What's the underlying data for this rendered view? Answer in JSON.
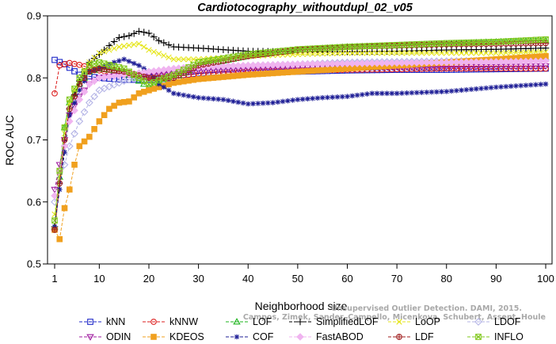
{
  "chart_data": {
    "type": "line",
    "title": "Cardiotocography_withoutdupl_02_v05",
    "xlabel": "Neighborhood size",
    "ylabel": "ROC AUC",
    "xlim": [
      1,
      100
    ],
    "ylim": [
      0.5,
      0.9
    ],
    "x_ticks": [
      1,
      10,
      20,
      30,
      40,
      50,
      60,
      70,
      80,
      90,
      100
    ],
    "y_ticks": [
      0.5,
      0.6,
      0.7,
      0.8,
      0.9
    ],
    "grid": false,
    "legend_position": "bottom",
    "series": [
      {
        "name": "kNN",
        "color": "#1f28c8",
        "marker": "square",
        "points": [
          [
            1,
            0.829
          ],
          [
            3,
            0.822
          ],
          [
            6,
            0.805
          ],
          [
            10,
            0.8
          ],
          [
            15,
            0.797
          ],
          [
            20,
            0.797
          ],
          [
            25,
            0.799
          ],
          [
            30,
            0.803
          ],
          [
            40,
            0.808
          ],
          [
            50,
            0.81
          ],
          [
            60,
            0.812
          ],
          [
            70,
            0.813
          ],
          [
            80,
            0.813
          ],
          [
            90,
            0.814
          ],
          [
            100,
            0.815
          ]
        ]
      },
      {
        "name": "kNNW",
        "color": "#dc1e1e",
        "marker": "circle",
        "points": [
          [
            1,
            0.775
          ],
          [
            2,
            0.82
          ],
          [
            4,
            0.824
          ],
          [
            6,
            0.821
          ],
          [
            10,
            0.812
          ],
          [
            15,
            0.806
          ],
          [
            20,
            0.802
          ],
          [
            25,
            0.803
          ],
          [
            30,
            0.806
          ],
          [
            40,
            0.81
          ],
          [
            50,
            0.812
          ],
          [
            60,
            0.813
          ],
          [
            70,
            0.814
          ],
          [
            80,
            0.815
          ],
          [
            90,
            0.815
          ],
          [
            100,
            0.815
          ]
        ]
      },
      {
        "name": "LOF",
        "color": "#1eb41e",
        "marker": "triangle-up",
        "points": [
          [
            1,
            0.56
          ],
          [
            2,
            0.64
          ],
          [
            3,
            0.72
          ],
          [
            4,
            0.76
          ],
          [
            6,
            0.79
          ],
          [
            8,
            0.81
          ],
          [
            10,
            0.815
          ],
          [
            15,
            0.81
          ],
          [
            20,
            0.785
          ],
          [
            25,
            0.8
          ],
          [
            30,
            0.82
          ],
          [
            40,
            0.835
          ],
          [
            50,
            0.845
          ],
          [
            60,
            0.85
          ],
          [
            70,
            0.852
          ],
          [
            80,
            0.855
          ],
          [
            90,
            0.858
          ],
          [
            100,
            0.86
          ]
        ]
      },
      {
        "name": "SimplifiedLOF",
        "color": "#000000",
        "marker": "plus",
        "points": [
          [
            1,
            0.56
          ],
          [
            2,
            0.63
          ],
          [
            3,
            0.69
          ],
          [
            4,
            0.75
          ],
          [
            6,
            0.795
          ],
          [
            8,
            0.825
          ],
          [
            10,
            0.838
          ],
          [
            12,
            0.852
          ],
          [
            14,
            0.865
          ],
          [
            16,
            0.868
          ],
          [
            18,
            0.875
          ],
          [
            20,
            0.872
          ],
          [
            22,
            0.86
          ],
          [
            25,
            0.85
          ],
          [
            30,
            0.848
          ],
          [
            40,
            0.843
          ],
          [
            50,
            0.842
          ],
          [
            60,
            0.842
          ],
          [
            70,
            0.843
          ],
          [
            80,
            0.845
          ],
          [
            90,
            0.846
          ],
          [
            100,
            0.848
          ]
        ]
      },
      {
        "name": "LoOP",
        "color": "#e6e61e",
        "marker": "x",
        "points": [
          [
            1,
            0.58
          ],
          [
            2,
            0.64
          ],
          [
            3,
            0.71
          ],
          [
            4,
            0.76
          ],
          [
            6,
            0.8
          ],
          [
            8,
            0.825
          ],
          [
            10,
            0.84
          ],
          [
            14,
            0.85
          ],
          [
            18,
            0.855
          ],
          [
            20,
            0.845
          ],
          [
            25,
            0.83
          ],
          [
            30,
            0.83
          ],
          [
            40,
            0.835
          ],
          [
            50,
            0.838
          ],
          [
            60,
            0.84
          ],
          [
            70,
            0.84
          ],
          [
            80,
            0.84
          ],
          [
            90,
            0.84
          ],
          [
            100,
            0.842
          ]
        ]
      },
      {
        "name": "LDOF",
        "color": "#b4b4e6",
        "marker": "diamond",
        "points": [
          [
            1,
            0.6
          ],
          [
            2,
            0.63
          ],
          [
            3,
            0.66
          ],
          [
            4,
            0.69
          ],
          [
            6,
            0.73
          ],
          [
            8,
            0.76
          ],
          [
            10,
            0.78
          ],
          [
            15,
            0.795
          ],
          [
            20,
            0.805
          ],
          [
            25,
            0.81
          ],
          [
            30,
            0.815
          ],
          [
            40,
            0.82
          ],
          [
            50,
            0.822
          ],
          [
            60,
            0.825
          ],
          [
            70,
            0.826
          ],
          [
            80,
            0.827
          ],
          [
            90,
            0.828
          ],
          [
            100,
            0.829
          ]
        ]
      },
      {
        "name": "ODIN",
        "color": "#a01ea0",
        "marker": "triangle-down",
        "points": [
          [
            1,
            0.62
          ],
          [
            2,
            0.66
          ],
          [
            3,
            0.7
          ],
          [
            4,
            0.74
          ],
          [
            6,
            0.77
          ],
          [
            8,
            0.79
          ],
          [
            10,
            0.8
          ],
          [
            15,
            0.805
          ],
          [
            20,
            0.805
          ],
          [
            25,
            0.81
          ],
          [
            30,
            0.812
          ],
          [
            40,
            0.815
          ],
          [
            50,
            0.816
          ],
          [
            60,
            0.817
          ],
          [
            70,
            0.818
          ],
          [
            80,
            0.818
          ],
          [
            90,
            0.818
          ],
          [
            100,
            0.819
          ]
        ]
      },
      {
        "name": "KDEOS",
        "color": "#f0a01e",
        "marker": "filled-square",
        "points": [
          [
            1,
            0.555
          ],
          [
            2,
            0.54
          ],
          [
            3,
            0.59
          ],
          [
            4,
            0.62
          ],
          [
            5,
            0.66
          ],
          [
            6,
            0.69
          ],
          [
            8,
            0.705
          ],
          [
            10,
            0.73
          ],
          [
            12,
            0.75
          ],
          [
            14,
            0.76
          ],
          [
            16,
            0.762
          ],
          [
            18,
            0.775
          ],
          [
            20,
            0.78
          ],
          [
            22,
            0.785
          ],
          [
            25,
            0.792
          ],
          [
            30,
            0.798
          ],
          [
            40,
            0.805
          ],
          [
            50,
            0.81
          ],
          [
            60,
            0.815
          ],
          [
            70,
            0.82
          ],
          [
            80,
            0.825
          ],
          [
            90,
            0.83
          ],
          [
            100,
            0.835
          ]
        ]
      },
      {
        "name": "COF",
        "color": "#1e1e96",
        "marker": "asterisk",
        "points": [
          [
            1,
            0.56
          ],
          [
            2,
            0.62
          ],
          [
            3,
            0.68
          ],
          [
            4,
            0.74
          ],
          [
            6,
            0.78
          ],
          [
            8,
            0.81
          ],
          [
            10,
            0.815
          ],
          [
            13,
            0.825
          ],
          [
            15,
            0.83
          ],
          [
            18,
            0.82
          ],
          [
            20,
            0.81
          ],
          [
            22,
            0.79
          ],
          [
            25,
            0.775
          ],
          [
            30,
            0.768
          ],
          [
            35,
            0.765
          ],
          [
            40,
            0.758
          ],
          [
            45,
            0.76
          ],
          [
            50,
            0.765
          ],
          [
            55,
            0.768
          ],
          [
            60,
            0.77
          ],
          [
            65,
            0.775
          ],
          [
            70,
            0.775
          ],
          [
            80,
            0.778
          ],
          [
            90,
            0.785
          ],
          [
            100,
            0.79
          ]
        ]
      },
      {
        "name": "FastABOD",
        "color": "#f0b4f0",
        "marker": "filled-diamond",
        "points": [
          [
            1,
            0.61
          ],
          [
            2,
            0.65
          ],
          [
            3,
            0.69
          ],
          [
            4,
            0.73
          ],
          [
            6,
            0.765
          ],
          [
            8,
            0.79
          ],
          [
            10,
            0.8
          ],
          [
            15,
            0.805
          ],
          [
            20,
            0.81
          ],
          [
            25,
            0.815
          ],
          [
            30,
            0.818
          ],
          [
            40,
            0.82
          ],
          [
            50,
            0.822
          ],
          [
            60,
            0.823
          ],
          [
            70,
            0.824
          ],
          [
            80,
            0.825
          ],
          [
            90,
            0.826
          ],
          [
            100,
            0.827
          ]
        ]
      },
      {
        "name": "LDF",
        "color": "#a01e1e",
        "marker": "circle-plus",
        "points": [
          [
            1,
            0.555
          ],
          [
            2,
            0.63
          ],
          [
            3,
            0.7
          ],
          [
            4,
            0.75
          ],
          [
            6,
            0.79
          ],
          [
            8,
            0.81
          ],
          [
            10,
            0.815
          ],
          [
            15,
            0.81
          ],
          [
            20,
            0.8
          ],
          [
            25,
            0.8
          ],
          [
            30,
            0.82
          ],
          [
            40,
            0.835
          ],
          [
            50,
            0.845
          ],
          [
            60,
            0.85
          ],
          [
            70,
            0.852
          ],
          [
            80,
            0.854
          ],
          [
            90,
            0.855
          ],
          [
            100,
            0.856
          ]
        ]
      },
      {
        "name": "INFLO",
        "color": "#82c81e",
        "marker": "square-x",
        "points": [
          [
            1,
            0.57
          ],
          [
            2,
            0.65
          ],
          [
            3,
            0.72
          ],
          [
            4,
            0.765
          ],
          [
            6,
            0.8
          ],
          [
            8,
            0.82
          ],
          [
            10,
            0.825
          ],
          [
            15,
            0.815
          ],
          [
            20,
            0.79
          ],
          [
            25,
            0.805
          ],
          [
            30,
            0.825
          ],
          [
            40,
            0.838
          ],
          [
            50,
            0.846
          ],
          [
            60,
            0.85
          ],
          [
            70,
            0.853
          ],
          [
            80,
            0.856
          ],
          [
            90,
            0.858
          ],
          [
            100,
            0.862
          ]
        ]
      }
    ]
  },
  "watermark": {
    "line1": "Unsupervised Outlier Detection. DAMI, 2015.",
    "line2": "Campos, Zimek, Sander, Campello, Micenkova, Schubert, Assent, Houle"
  }
}
